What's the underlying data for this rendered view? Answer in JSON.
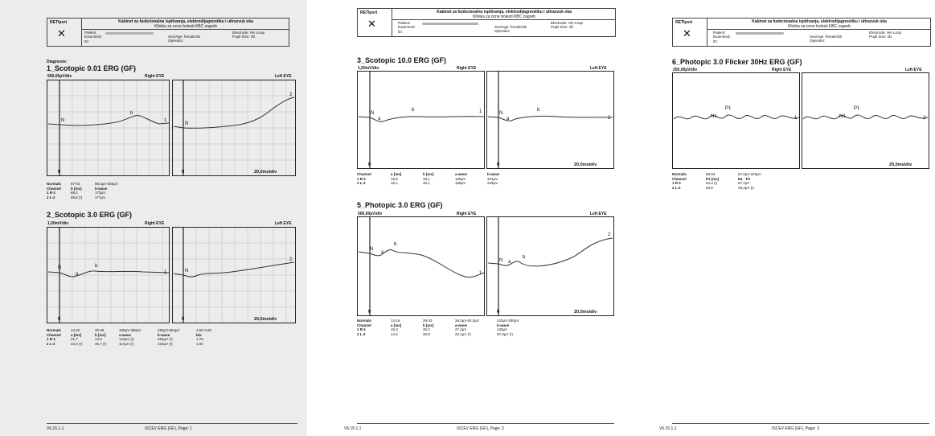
{
  "header": {
    "logo": "RETIport",
    "title": "Kabinet za funkcionalna ispitivanja, elektrodijagnostiku i ultrazvuk oka",
    "subtitle": "Klinika za ocne bolesti KBC zagreb",
    "patient_label": "Patient:",
    "examined_label": "Examined:",
    "id_label": "ID:",
    "sexage_label": "Sex/Age:",
    "sexage_value": "female/35",
    "operator_label": "Operator:",
    "electrode_label": "Electrode:",
    "electrode_value": "HK-Loop",
    "pupil_label": "Pupil Size:",
    "pupil_value": "dil."
  },
  "page1": {
    "diagnosis": "Diagnosis:",
    "s1_title": "1_Scotopic 0.01 ERG (GF)",
    "s1_scale": "500,00µV/div",
    "s1_time": "20,0ms/div",
    "s1_table": [
      [
        "Normals",
        "67-91",
        "95,0µV-305µV",
        ""
      ],
      [
        "Channel",
        "b [ms]",
        "b-wave",
        ""
      ],
      [
        "1 R-1",
        "89,2",
        "173µV",
        ""
      ],
      [
        "2 L-2",
        "99,8 (!)",
        "177µV",
        ""
      ]
    ],
    "s2_title": "2_Scotopic 3.0 ERG (GF)",
    "s2_scale": "1,00mV/div",
    "s2_time": "20,0ms/div",
    "s2_table": [
      [
        "Normals",
        "14-22",
        "33-46",
        "155µV-358µV",
        "290µV-654µV",
        "1,50-2,60"
      ],
      [
        "Channel",
        "a [ms]",
        "b [ms]",
        "a-wave",
        "b-wave",
        "b/a"
      ],
      [
        "1 R-1",
        "21,7",
        "44,9",
        "144µV (!)",
        "254µV (!)",
        "1,76"
      ],
      [
        "2 L-2",
        "22,0 (!)",
        "45,7 (!)",
        "117µV (!)",
        "224µV (!)",
        "1,92"
      ]
    ],
    "footer_left": "V6.15.1.1",
    "footer_center": "ISCEV ERG (GF), Page: 1"
  },
  "page2": {
    "s3_title": "3_Scotopic 10.0 ERG (GF)",
    "s3_scale": "1,00mV/div",
    "s3_time": "20,0ms/div",
    "s3_table": [
      [
        "Channel",
        "a [ms]",
        "b [ms]",
        "a-wave",
        "b-wave"
      ],
      [
        "1 R-1",
        "15,9",
        "48,1",
        "195µV",
        "331µV"
      ],
      [
        "2 L-2",
        "16,1",
        "46,1",
        "168µV",
        "249µV"
      ]
    ],
    "s5_title": "5_Photopic 3.0 ERG (GF)",
    "s5_scale": "500,00µV/div",
    "s5_time": "20,0ms/div",
    "s5_table": [
      [
        "Normals",
        "13-16",
        "29-33",
        "26,0µV-62,0µV",
        "103µV-250µV"
      ],
      [
        "Channel",
        "a [ms]",
        "b [ms]",
        "a-wave",
        "b-wave"
      ],
      [
        "1 R-1",
        "15,3",
        "30,2",
        "27,3µV",
        "125µV"
      ],
      [
        "2 L-2",
        "14,4",
        "30,8",
        "22,1µV (!)",
        "97,0µV (!)"
      ]
    ],
    "footer_left": "V6.15.1.1",
    "footer_center": "ISCEV ERG (GF), Page: 2"
  },
  "page3": {
    "s6_title": "6_Photopic 3.0 Flicker 30Hz  ERG (GF)",
    "s6_scale": "250,00µV/div",
    "s6_time": "20,0ms/div",
    "s6_table": [
      [
        "Normals",
        "58-64",
        "57,0µV-223µV"
      ],
      [
        "Channel",
        "P1 [ms]",
        "N1 - P1"
      ],
      [
        "1 R-1",
        "64,3 (!)",
        "57,7µV"
      ],
      [
        "2 L-2",
        "60,8",
        "48,2µV (!)"
      ]
    ],
    "footer_left": "V6.15.1.1",
    "footer_center": "ISCEV ERG (GF), Page: 3"
  },
  "labels": {
    "right_eye": "Right EYE",
    "left_eye": "Left EYE",
    "zero": "0",
    "n": "N",
    "a": "a",
    "b": "b",
    "n1": "N1",
    "p1": "P1",
    "ch1": "1",
    "ch2": "2"
  }
}
